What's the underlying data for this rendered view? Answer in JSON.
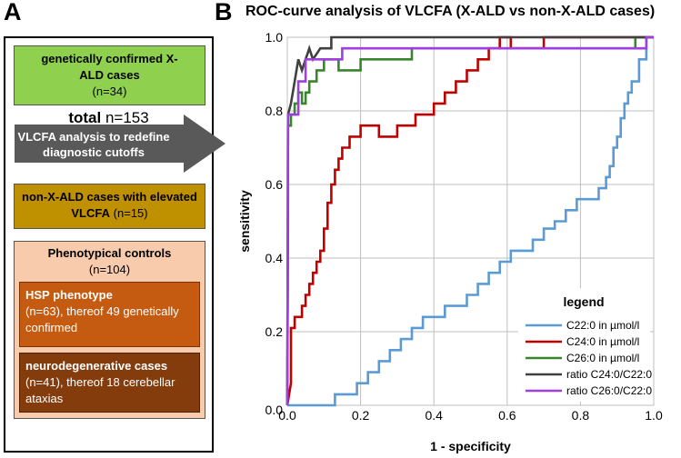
{
  "panel_a": {
    "letter": "A",
    "xald_box": {
      "title": "genetically confirmed X-ALD cases",
      "count": "(n=34)"
    },
    "total": {
      "label": "total",
      "value": "n=153"
    },
    "arrow": {
      "text": "VLCFA analysis to redefine diagnostic cutoffs"
    },
    "non_xald_box": {
      "title": "non-X-ALD cases with elevated VLCFA",
      "count": "(n=15)"
    },
    "phenotypical_box": {
      "title": "Phenotypical controls",
      "count": "(n=104)",
      "hsp": {
        "title": "HSP phenotype",
        "detail": "(n=63), thereof 49 genetically confirmed"
      },
      "neuro": {
        "title": "neurodegenerative cases",
        "detail": "(n=41), thereof 18 cerebellar ataxias"
      }
    }
  },
  "panel_b": {
    "letter": "B"
  },
  "colors": {
    "xald_box": "#8fd14f",
    "non_xald_box": "#bf9000",
    "pheno_box": "#f8cbad",
    "hsp_box": "#c55a11",
    "neuro_box": "#843c0c",
    "arrow": "#595959"
  },
  "chart_data": {
    "type": "line",
    "title": "ROC-curve analysis of VLCFA  (X-ALD vs non-X-ALD cases)",
    "xlabel": "1 - specificity",
    "ylabel": "sensitivity",
    "xlim": [
      0,
      1
    ],
    "ylim": [
      0,
      1
    ],
    "xticks": [
      0,
      0.2,
      0.4,
      0.6,
      0.8,
      1
    ],
    "yticks": [
      0.2,
      0.4,
      0.6,
      0.8,
      1
    ],
    "xtick_labels": [
      "0.0",
      "0.2",
      "0.4",
      "0.6",
      "0.8",
      "1.0"
    ],
    "ytick_labels": [
      "0.2",
      "0.4",
      "0.6",
      "0.8",
      "1.0"
    ],
    "origin_label": "0.0",
    "grid": true,
    "legend_title": "legend",
    "legend_position": "bottom-right",
    "series": [
      {
        "name": "C22:0 in µmol/l",
        "color": "#5b9bd5",
        "x": [
          0,
          0.13,
          0.13,
          0.19,
          0.19,
          0.22,
          0.22,
          0.25,
          0.25,
          0.28,
          0.28,
          0.31,
          0.31,
          0.34,
          0.34,
          0.37,
          0.37,
          0.43,
          0.43,
          0.49,
          0.49,
          0.52,
          0.52,
          0.55,
          0.55,
          0.58,
          0.58,
          0.61,
          0.61,
          0.67,
          0.67,
          0.7,
          0.7,
          0.73,
          0.73,
          0.76,
          0.76,
          0.79,
          0.79,
          0.85,
          0.85,
          0.87,
          0.87,
          0.88,
          0.88,
          0.89,
          0.89,
          0.9,
          0.9,
          0.91,
          0.91,
          0.92,
          0.92,
          0.93,
          0.93,
          0.94,
          0.94,
          0.96,
          0.96,
          0.98,
          0.98,
          1.0
        ],
        "y": [
          0,
          0,
          0.03,
          0.03,
          0.06,
          0.06,
          0.09,
          0.09,
          0.12,
          0.12,
          0.15,
          0.15,
          0.18,
          0.18,
          0.21,
          0.21,
          0.24,
          0.24,
          0.27,
          0.27,
          0.3,
          0.3,
          0.33,
          0.33,
          0.36,
          0.36,
          0.39,
          0.39,
          0.42,
          0.42,
          0.45,
          0.45,
          0.48,
          0.48,
          0.5,
          0.5,
          0.53,
          0.53,
          0.56,
          0.56,
          0.59,
          0.59,
          0.62,
          0.62,
          0.65,
          0.65,
          0.7,
          0.7,
          0.73,
          0.73,
          0.78,
          0.78,
          0.82,
          0.82,
          0.85,
          0.85,
          0.88,
          0.88,
          0.94,
          0.94,
          1.0,
          1.0
        ]
      },
      {
        "name": "C24:0 in µmol/l",
        "color": "#c00000",
        "x": [
          0,
          0.01,
          0.01,
          0.02,
          0.02,
          0.04,
          0.04,
          0.05,
          0.05,
          0.06,
          0.06,
          0.07,
          0.07,
          0.08,
          0.08,
          0.09,
          0.09,
          0.1,
          0.1,
          0.11,
          0.11,
          0.12,
          0.12,
          0.13,
          0.13,
          0.14,
          0.14,
          0.15,
          0.15,
          0.17,
          0.17,
          0.2,
          0.2,
          0.25,
          0.25,
          0.3,
          0.3,
          0.35,
          0.35,
          0.4,
          0.4,
          0.43,
          0.43,
          0.46,
          0.46,
          0.49,
          0.49,
          0.52,
          0.52,
          0.55,
          0.55,
          0.58,
          0.58,
          0.61,
          0.61,
          0.7,
          0.7,
          1.0
        ],
        "y": [
          0,
          0.06,
          0.21,
          0.21,
          0.24,
          0.24,
          0.27,
          0.27,
          0.3,
          0.3,
          0.33,
          0.33,
          0.36,
          0.36,
          0.39,
          0.39,
          0.42,
          0.42,
          0.48,
          0.48,
          0.55,
          0.55,
          0.6,
          0.6,
          0.64,
          0.64,
          0.67,
          0.67,
          0.7,
          0.7,
          0.73,
          0.73,
          0.76,
          0.76,
          0.73,
          0.73,
          0.76,
          0.76,
          0.79,
          0.79,
          0.82,
          0.82,
          0.85,
          0.85,
          0.88,
          0.88,
          0.91,
          0.91,
          0.94,
          0.94,
          0.97,
          0.97,
          1.0,
          1.0,
          0.97,
          0.97,
          1.0,
          1.0
        ]
      },
      {
        "name": "C26:0 in µmol/l",
        "color": "#38862b",
        "x": [
          0,
          0.002,
          0.002,
          0.01,
          0.01,
          0.02,
          0.02,
          0.03,
          0.03,
          0.04,
          0.04,
          0.05,
          0.05,
          0.06,
          0.06,
          0.08,
          0.08,
          0.1,
          0.1,
          0.14,
          0.14,
          0.2,
          0.2,
          0.34,
          0.34,
          0.95,
          0.95,
          1.0
        ],
        "y": [
          0,
          0.51,
          0.76,
          0.76,
          0.79,
          0.79,
          0.82,
          0.82,
          0.85,
          0.85,
          0.82,
          0.82,
          0.85,
          0.85,
          0.88,
          0.88,
          0.91,
          0.91,
          0.94,
          0.94,
          0.91,
          0.91,
          0.94,
          0.94,
          0.97,
          0.97,
          1.0,
          1.0
        ]
      },
      {
        "name": "ratio C24:0/C22:0",
        "color": "#404040",
        "x": [
          0,
          0.002,
          0.002,
          0.01,
          0.01,
          0.02,
          0.02,
          0.03,
          0.03,
          0.04,
          0.04,
          0.05,
          0.05,
          0.06,
          0.06,
          0.07,
          0.07,
          0.09,
          0.09,
          0.12,
          0.12,
          1.0
        ],
        "y": [
          0,
          0.79,
          0.79,
          0.82,
          0.82,
          0.88,
          0.88,
          0.94,
          0.94,
          0.91,
          0.91,
          0.94,
          0.94,
          0.97,
          0.97,
          0.94,
          0.94,
          0.97,
          0.97,
          0.97,
          1.0,
          1.0
        ]
      },
      {
        "name": "ratio C26:0/C22:0",
        "color": "#a03ee0",
        "x": [
          0,
          0.002,
          0.002,
          0.03,
          0.03,
          0.05,
          0.05,
          0.06,
          0.06,
          0.1,
          0.1,
          0.15,
          0.15,
          0.2,
          0.2,
          0.87,
          0.87,
          0.98,
          0.98,
          1.0
        ],
        "y": [
          0,
          0.79,
          0.79,
          0.79,
          0.88,
          0.88,
          0.94,
          0.94,
          0.94,
          0.94,
          0.94,
          0.94,
          0.97,
          0.97,
          0.97,
          0.97,
          0.97,
          0.97,
          1.0,
          1.0
        ]
      }
    ]
  }
}
